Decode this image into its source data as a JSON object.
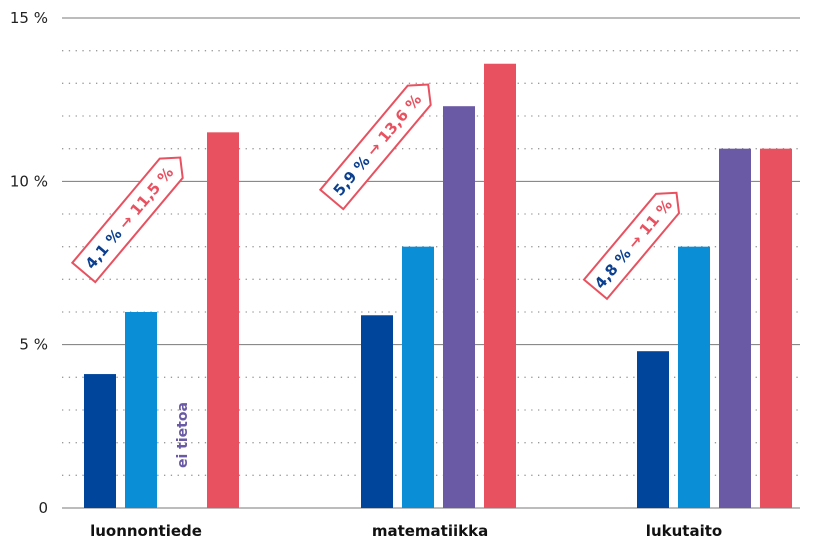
{
  "colors": {
    "series": [
      "#00459c",
      "#0a8ed6",
      "#6a5aa5",
      "#e8515f"
    ],
    "grid_major": "#7a7a7a",
    "grid_minor": "#9a9a9a",
    "callout_from": "#0b3f8f",
    "callout_to": "#e8515f",
    "no_data": "#6a5aa5"
  },
  "chart_data": {
    "type": "bar",
    "categories": [
      "luonnontiede",
      "matematiikka",
      "lukutaito"
    ],
    "series": [
      {
        "values": [
          4.1,
          5.9,
          4.8
        ]
      },
      {
        "values": [
          6.0,
          8.0,
          8.0
        ]
      },
      {
        "values": [
          null,
          12.3,
          11.0
        ]
      },
      {
        "values": [
          11.5,
          13.6,
          11.0
        ]
      }
    ],
    "ylim": [
      0,
      15
    ],
    "yticks": [
      {
        "value": 0,
        "label": "0"
      },
      {
        "value": 5,
        "label": "5 %"
      },
      {
        "value": 10,
        "label": "10 %"
      },
      {
        "value": 15,
        "label": "15 %"
      }
    ],
    "minor_grid_step": 1,
    "no_data_label": "ei tietoa",
    "callouts": [
      {
        "from": "4,1 %",
        "arrow": "→",
        "to": "11,5 %"
      },
      {
        "from": "5,9 %",
        "arrow": "→",
        "to": "13,6 %"
      },
      {
        "from": "4,8 %",
        "arrow": "→",
        "to": "11 %"
      }
    ]
  }
}
